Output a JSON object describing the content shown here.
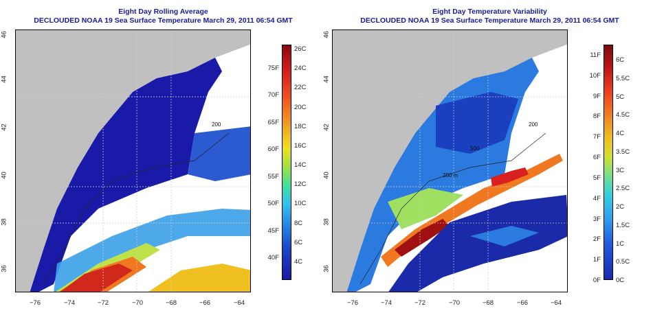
{
  "left_panel": {
    "title_line1": "Eight Day Rolling Average",
    "title_line2": "DECLOUDED NOAA 19 Sea Surface Temperature March 29, 2011 06:54 GMT",
    "celsius_labels": [
      "26C",
      "24C",
      "22C",
      "20C",
      "18C",
      "16C",
      "14C",
      "12C",
      "10C",
      "8C",
      "6C",
      "4C"
    ],
    "fahrenheit_labels": [
      "75F",
      "70F",
      "65F",
      "60F",
      "55F",
      "50F",
      "45F",
      "40F"
    ],
    "contour_labels": [
      "200"
    ]
  },
  "right_panel": {
    "title_line1": "Eight Day Temperature Variability",
    "title_line2": "DECLOUDED NOAA 19 Sea Surface Temperature March 29, 2011 06:54 GMT",
    "fahrenheit_labels": [
      "11F",
      "10F",
      "9F",
      "8F",
      "7F",
      "6F",
      "5F",
      "4F",
      "3F",
      "2F",
      "1F",
      "0F"
    ],
    "celsius_labels": [
      "6C",
      "5.5C",
      "5C",
      "4.5C",
      "4C",
      "3.5C",
      "3C",
      "2.5C",
      "2C",
      "1.5C",
      "1C",
      "0.5C",
      "0C"
    ],
    "contour_labels": [
      "200 m",
      "500",
      "200"
    ]
  },
  "axes": {
    "lat_ticks": [
      "46",
      "44",
      "42",
      "40",
      "38",
      "36"
    ],
    "lon_ticks": [
      "−76",
      "−74",
      "−72",
      "−70",
      "−68",
      "−66",
      "−64"
    ]
  },
  "colors": {
    "title": "#1a1a9a",
    "land": "#c0c0c0",
    "cold": "#1a1aa8",
    "warm": "#c81a1a"
  }
}
